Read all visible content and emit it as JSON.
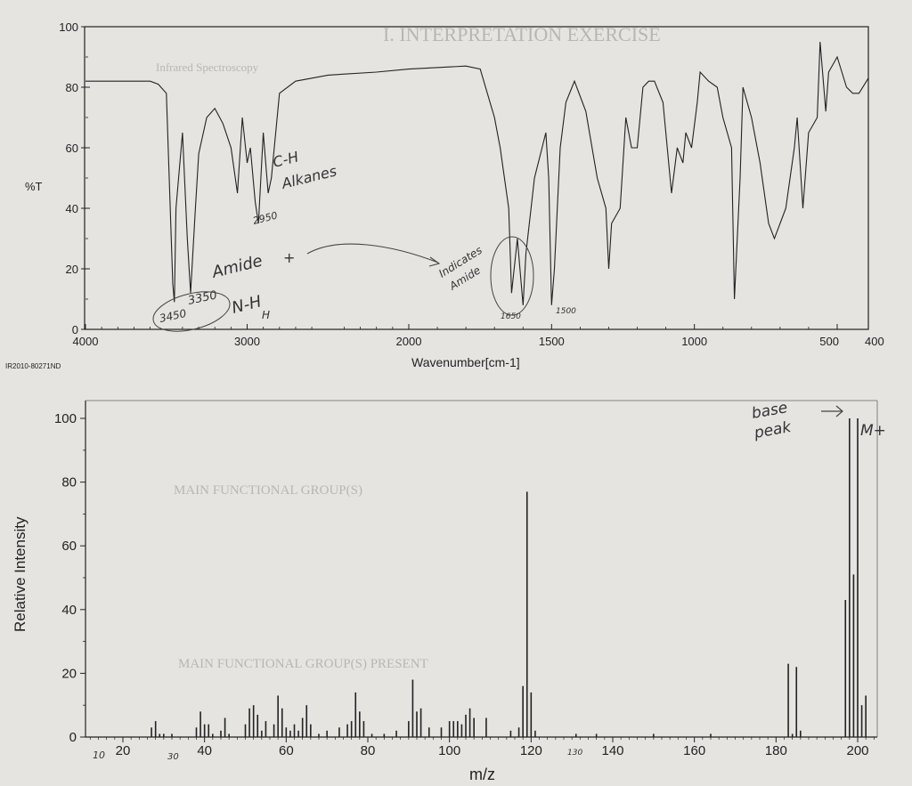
{
  "chart_data": [
    {
      "type": "line",
      "chart": "IR spectrum",
      "ylabel": "%T",
      "xlabel": "Wavenumber[cm-1]",
      "code": "IR2010-80271ND",
      "xlim": [
        4000,
        400
      ],
      "ylim": [
        0,
        100
      ],
      "x_ticks": [
        "4000",
        "3000",
        "2000",
        "1500",
        "1000",
        "500",
        "400"
      ],
      "y_ticks": [
        "0",
        "20",
        "40",
        "60",
        "80",
        "100"
      ],
      "x": [
        4000,
        3800,
        3600,
        3550,
        3500,
        3460,
        3450,
        3440,
        3400,
        3370,
        3350,
        3320,
        3300,
        3250,
        3200,
        3150,
        3100,
        3060,
        3030,
        3000,
        2980,
        2950,
        2930,
        2900,
        2870,
        2850,
        2800,
        2700,
        2500,
        2200,
        2000,
        1800,
        1750,
        1700,
        1680,
        1650,
        1640,
        1620,
        1600,
        1590,
        1560,
        1520,
        1510,
        1500,
        1490,
        1470,
        1450,
        1420,
        1380,
        1340,
        1310,
        1300,
        1290,
        1260,
        1240,
        1220,
        1200,
        1180,
        1160,
        1140,
        1110,
        1080,
        1060,
        1040,
        1030,
        1010,
        990,
        980,
        950,
        920,
        900,
        870,
        860,
        840,
        830,
        800,
        770,
        740,
        720,
        700,
        680,
        650,
        640,
        620,
        600,
        570,
        560,
        540,
        530,
        500,
        470,
        450,
        430,
        400
      ],
      "y": [
        82,
        82,
        82,
        81,
        78,
        15,
        9,
        40,
        65,
        30,
        12,
        40,
        58,
        70,
        73,
        68,
        60,
        45,
        70,
        55,
        60,
        42,
        35,
        65,
        45,
        50,
        78,
        82,
        84,
        85,
        86,
        87,
        86,
        70,
        60,
        40,
        12,
        30,
        8,
        25,
        50,
        65,
        50,
        8,
        20,
        60,
        75,
        82,
        72,
        50,
        40,
        20,
        35,
        40,
        70,
        60,
        60,
        80,
        82,
        82,
        75,
        45,
        60,
        55,
        65,
        60,
        75,
        85,
        82,
        80,
        70,
        60,
        10,
        50,
        80,
        70,
        55,
        35,
        30,
        35,
        40,
        60,
        70,
        40,
        65,
        70,
        95,
        72,
        85,
        90,
        80,
        78,
        78,
        83
      ]
    },
    {
      "type": "bar",
      "chart": "mass spectrum",
      "ylabel": "Relative Intensity",
      "xlabel": "m/z",
      "xlim": [
        10,
        205
      ],
      "ylim": [
        0,
        100
      ],
      "x_ticks": [
        "20",
        "40",
        "60",
        "80",
        "100",
        "120",
        "140",
        "160",
        "180",
        "200"
      ],
      "y_ticks": [
        "0",
        "20",
        "40",
        "60",
        "80",
        "100"
      ],
      "x": [
        27,
        28,
        29,
        30,
        32,
        38,
        39,
        40,
        41,
        42,
        44,
        45,
        46,
        50,
        51,
        52,
        53,
        54,
        55,
        57,
        58,
        59,
        60,
        61,
        62,
        63,
        64,
        65,
        66,
        68,
        70,
        73,
        75,
        76,
        77,
        78,
        79,
        81,
        84,
        87,
        90,
        91,
        92,
        93,
        95,
        98,
        100,
        101,
        102,
        103,
        104,
        105,
        106,
        109,
        115,
        117,
        118,
        119,
        120,
        121,
        131,
        136,
        150,
        164,
        183,
        184,
        185,
        186,
        197,
        198,
        199,
        200,
        201,
        202
      ],
      "values": [
        3,
        5,
        1,
        1,
        1,
        3,
        8,
        4,
        4,
        1,
        2,
        6,
        1,
        4,
        9,
        10,
        7,
        2,
        5,
        4,
        13,
        9,
        3,
        2,
        4,
        2,
        6,
        10,
        4,
        1,
        2,
        3,
        4,
        5,
        14,
        8,
        5,
        1,
        1,
        2,
        5,
        18,
        8,
        9,
        3,
        3,
        5,
        5,
        5,
        4,
        7,
        9,
        6,
        6,
        2,
        3,
        16,
        77,
        14,
        2,
        1,
        1,
        1,
        1,
        23,
        1,
        22,
        2,
        43,
        100,
        51,
        100,
        10,
        13
      ]
    }
  ],
  "annotations": {
    "ch_alkanes_1": "C-H",
    "ch_alkanes_2": "Alkanes",
    "peak_2950": "2950",
    "amide": "Amide",
    "plus": "+",
    "nh": "N-H",
    "nh_h": "H",
    "peak_3350": "3350",
    "peak_3450": "3450",
    "indicates_1": "Indicates",
    "indicates_2": "Amide",
    "peak_1650": "1650",
    "peak_1500": "1500",
    "base_1": "base",
    "base_2": "peak",
    "mplus": "M+",
    "ms_10": "10",
    "ms_30": "30",
    "ms_130": "130"
  },
  "background_text": {
    "line_1": "I. INTERPRETATION EXERCISE",
    "line_2": "Infrared Spectroscopy",
    "line_3": "MAIN FUNCTIONAL GROUP(S)",
    "line_4": "MAIN FUNCTIONAL GROUP(S) PRESENT"
  },
  "colors": {
    "paper": "#e6e4e1",
    "ink": "#222222",
    "pencil": "#333333",
    "faint_print": "#b9b6b2"
  }
}
